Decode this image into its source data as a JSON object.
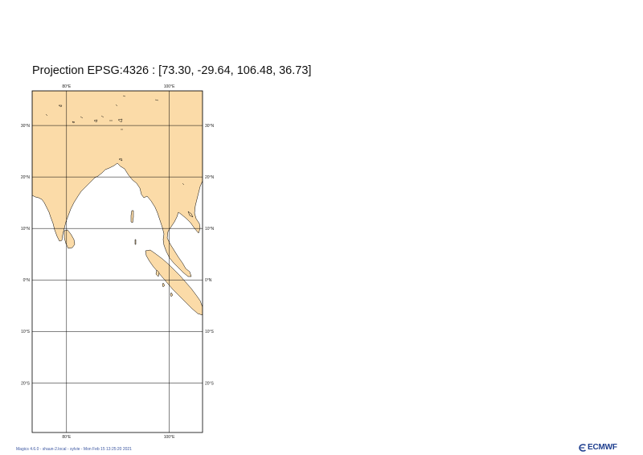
{
  "title": "Projection EPSG:4326 : [73.30, -29.64, 106.48, 36.73]",
  "footer": "Magics 4.6.0 - shaun-2.local - sylvie - Mon Feb 15 13:25:20 2021",
  "logo_text": "ECMWF",
  "colors": {
    "land": "#fbdba8",
    "sea": "#ffffff",
    "coast": "#000000",
    "grid": "#000000",
    "logo": "#1f3f8f"
  },
  "map": {
    "extent": {
      "lon_min": 73.3,
      "lat_min": -29.64,
      "lon_max": 106.48,
      "lat_max": 36.73
    },
    "lon_ticks": [
      {
        "value": 80,
        "label": "80°E"
      },
      {
        "value": 100,
        "label": "100°E"
      }
    ],
    "lat_ticks": [
      {
        "value": 30,
        "label": "30°N"
      },
      {
        "value": 20,
        "label": "20°N"
      },
      {
        "value": 10,
        "label": "10°N"
      },
      {
        "value": 0,
        "label": "0°N"
      },
      {
        "value": -10,
        "label": "10°S"
      },
      {
        "value": -20,
        "label": "20°S"
      }
    ]
  }
}
